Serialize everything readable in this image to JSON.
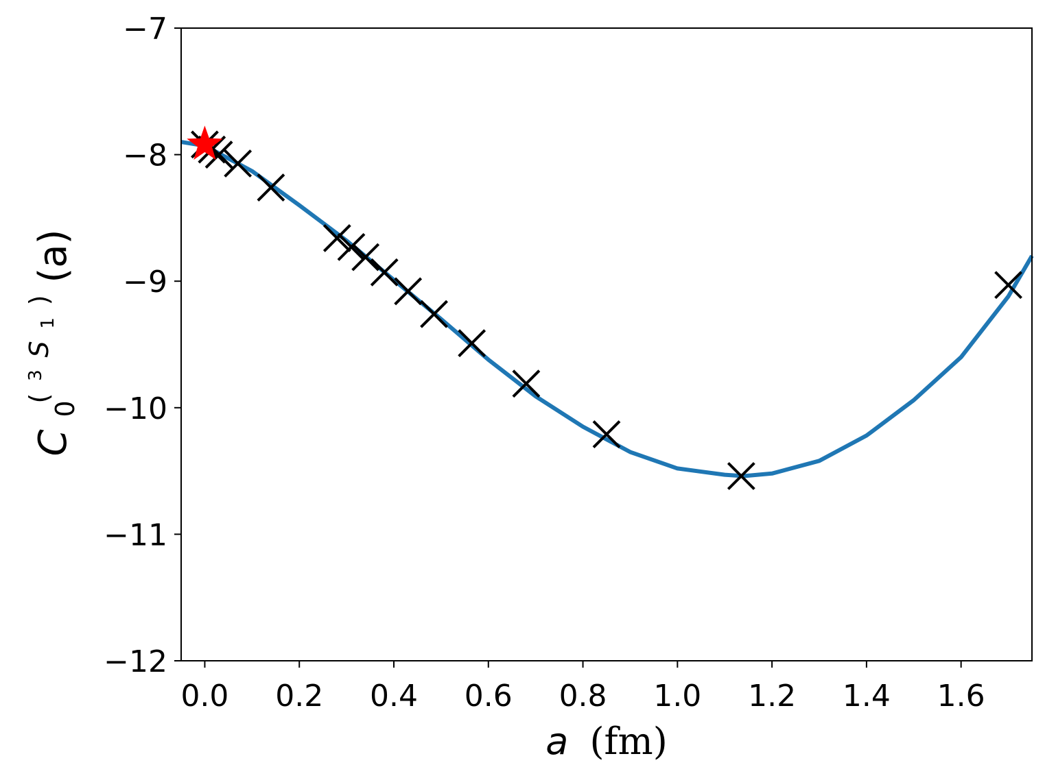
{
  "chart_data": {
    "type": "line",
    "title": "",
    "xlabel": {
      "symbol": "a",
      "unit": "(fm)"
    },
    "ylabel": {
      "base": "C",
      "sub": "0",
      "sup_open": "(",
      "sup_num": "3",
      "sup_letter": "S",
      "sup_letter_sub": "1",
      "sup_close": ")",
      "arg": "(a)"
    },
    "xlim": [
      -0.05,
      1.75
    ],
    "ylim": [
      -12,
      -7
    ],
    "xticks": [
      0.0,
      0.2,
      0.4,
      0.6,
      0.8,
      1.0,
      1.2,
      1.4,
      1.6
    ],
    "xtick_labels": [
      "0.0",
      "0.2",
      "0.4",
      "0.6",
      "0.8",
      "1.0",
      "1.2",
      "1.4",
      "1.6"
    ],
    "yticks": [
      -7,
      -8,
      -9,
      -10,
      -11,
      -12
    ],
    "ytick_labels": [
      "−7",
      "−8",
      "−9",
      "−10",
      "−11",
      "−12"
    ],
    "grid": false,
    "legend": null,
    "series": [
      {
        "kind": "line",
        "color": "#1f77b4",
        "x": [
          -0.05,
          0.0,
          0.1,
          0.2,
          0.3,
          0.4,
          0.5,
          0.6,
          0.7,
          0.8,
          0.9,
          1.0,
          1.1,
          1.14,
          1.2,
          1.3,
          1.4,
          1.5,
          1.6,
          1.7,
          1.75
        ],
        "y": [
          -7.9,
          -7.93,
          -8.13,
          -8.4,
          -8.68,
          -8.99,
          -9.3,
          -9.62,
          -9.91,
          -10.15,
          -10.35,
          -10.48,
          -10.53,
          -10.54,
          -10.52,
          -10.42,
          -10.22,
          -9.94,
          -9.6,
          -9.12,
          -8.8
        ]
      },
      {
        "kind": "markers",
        "marker": "x",
        "color": "#000000",
        "x": [
          0.0,
          0.015,
          0.03,
          0.07,
          0.14,
          0.28,
          0.31,
          0.34,
          0.38,
          0.43,
          0.485,
          0.565,
          0.68,
          0.85,
          1.135,
          1.7
        ],
        "y": [
          -7.92,
          -7.96,
          -8.0,
          -8.07,
          -8.26,
          -8.66,
          -8.73,
          -8.81,
          -8.93,
          -9.08,
          -9.26,
          -9.49,
          -9.81,
          -10.21,
          -10.54,
          -9.03
        ]
      },
      {
        "kind": "markers",
        "marker": "star",
        "color": "#ff0000",
        "x": [
          0.0
        ],
        "y": [
          -7.92
        ]
      }
    ]
  }
}
